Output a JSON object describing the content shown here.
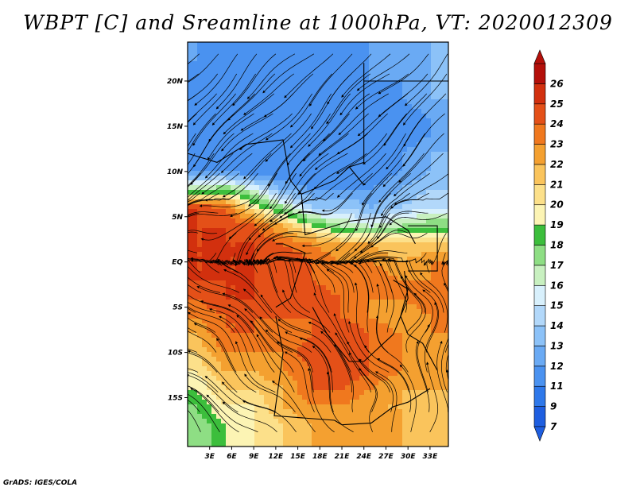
{
  "title": "WBPT [C] and Sreamline at 1000hPa, VT: 2020012309",
  "footer": "GrADS: IGES/COLA",
  "lat_labels": [
    "20N",
    "15N",
    "10N",
    "5N",
    "EQ",
    "5S",
    "10S",
    "15S"
  ],
  "lon_labels": [
    "3E",
    "6E",
    "9E",
    "12E",
    "15E",
    "18E",
    "21E",
    "24E",
    "27E",
    "30E",
    "33E"
  ],
  "colorbar": {
    "labels": [
      "7",
      "9",
      "11",
      "12",
      "13",
      "14",
      "15",
      "16",
      "17",
      "18",
      "19",
      "20",
      "21",
      "22",
      "23",
      "24",
      "25",
      "26"
    ],
    "colors": [
      "#1e5ee0",
      "#2e78ea",
      "#4a92f0",
      "#6aaaf4",
      "#8cc2f8",
      "#b2d8fa",
      "#d8f0fc",
      "#c8f0c0",
      "#8ede84",
      "#3cbe3c",
      "#fcf4b4",
      "#fce08a",
      "#fac45c",
      "#f4a030",
      "#f0781e",
      "#e45018",
      "#d2300e",
      "#b4100a"
    ]
  },
  "field": {
    "lats": [
      22,
      20,
      18,
      16,
      14,
      12,
      10,
      8,
      6,
      4,
      2,
      0,
      -2,
      -4,
      -6,
      -8,
      -10,
      -12,
      -14,
      -16,
      -18
    ],
    "lons": [
      1,
      5,
      9,
      13,
      17,
      21,
      25,
      29,
      33
    ],
    "wbpt": [
      [
        11,
        9,
        9,
        10,
        10,
        10,
        11,
        11,
        12
      ],
      [
        10,
        10,
        10,
        10,
        11,
        11,
        11,
        11,
        12
      ],
      [
        9,
        10,
        10,
        11,
        10,
        10,
        10,
        11,
        12
      ],
      [
        9,
        10,
        10,
        10,
        10,
        10,
        10,
        10,
        11
      ],
      [
        9,
        10,
        10,
        10,
        10,
        10,
        10,
        10,
        11
      ],
      [
        9,
        9,
        10,
        10,
        10,
        10,
        10,
        11,
        12
      ],
      [
        11,
        11,
        10,
        10,
        10,
        10,
        10,
        11,
        12
      ],
      [
        16,
        17,
        15,
        12,
        11,
        11,
        11,
        12,
        13
      ],
      [
        24,
        23,
        19,
        16,
        13,
        13,
        12,
        13,
        14
      ],
      [
        24,
        24,
        23,
        21,
        18,
        16,
        15,
        16,
        17
      ],
      [
        24,
        24,
        24,
        23,
        22,
        21,
        21,
        20,
        20
      ],
      [
        24,
        24,
        24,
        24,
        23,
        22,
        22,
        21,
        22
      ],
      [
        24,
        24,
        24,
        23,
        23,
        22,
        23,
        22,
        22
      ],
      [
        23,
        24,
        24,
        24,
        24,
        23,
        22,
        22,
        23
      ],
      [
        22,
        23,
        23,
        23,
        23,
        23,
        22,
        21,
        22
      ],
      [
        21,
        23,
        23,
        22,
        23,
        24,
        23,
        22,
        22
      ],
      [
        20,
        22,
        22,
        22,
        24,
        24,
        23,
        22,
        21
      ],
      [
        19,
        21,
        21,
        22,
        23,
        24,
        23,
        22,
        21
      ],
      [
        18,
        20,
        20,
        21,
        23,
        23,
        22,
        21,
        21
      ],
      [
        17,
        19,
        19,
        21,
        22,
        22,
        21,
        21,
        20
      ],
      [
        16,
        18,
        19,
        20,
        21,
        22,
        21,
        21,
        20
      ]
    ]
  }
}
